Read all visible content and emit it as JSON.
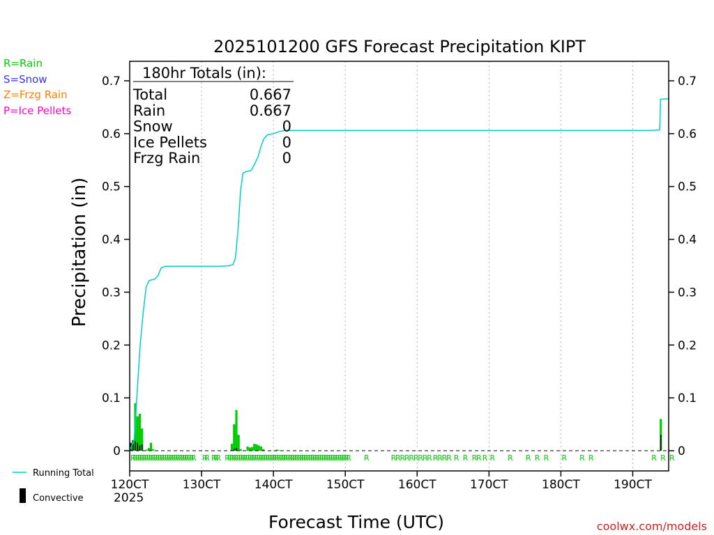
{
  "chart_data": {
    "type": "bar",
    "title": "2025101200 GFS Forecast Precipitation KIPT",
    "xlabel": "Forecast Time (UTC)",
    "ylabel": "Precipitation (in)",
    "ylim": [
      0,
      0.73
    ],
    "xlim_hours": [
      0,
      180
    ],
    "y_ticks": [
      "0",
      "0.1",
      "0.2",
      "0.3",
      "0.4",
      "0.5",
      "0.6",
      "0.7"
    ],
    "y_tick_values": [
      0,
      0.1,
      0.2,
      0.3,
      0.4,
      0.5,
      0.6,
      0.7
    ],
    "x_ticks": [
      {
        "label": "120CT",
        "hour": 0
      },
      {
        "label": "130CT",
        "hour": 24
      },
      {
        "label": "140CT",
        "hour": 48
      },
      {
        "label": "150CT",
        "hour": 72
      },
      {
        "label": "160CT",
        "hour": 96
      },
      {
        "label": "170CT",
        "hour": 120
      },
      {
        "label": "180CT",
        "hour": 144
      },
      {
        "label": "190CT",
        "hour": 168
      }
    ],
    "year_label": "2025",
    "totals": {
      "heading": "180hr Totals (in):",
      "rows": [
        {
          "label": "Total",
          "value": "0.667"
        },
        {
          "label": "Rain",
          "value": "0.667"
        },
        {
          "label": "Snow",
          "value": "0"
        },
        {
          "label": "Ice Pellets",
          "value": "0"
        },
        {
          "label": "Frzg Rain",
          "value": "0"
        }
      ]
    },
    "precip_type_legend": [
      {
        "label": "R=Rain",
        "color": "#00cc00"
      },
      {
        "label": "S=Snow",
        "color": "#3333ff"
      },
      {
        "label": "Z=Frzg Rain",
        "color": "#ff8000"
      },
      {
        "label": "P=Ice Pellets",
        "color": "#ff00cc"
      }
    ],
    "series_legend": {
      "running_total": "Running Total",
      "convective": "Convective"
    },
    "series": [
      {
        "name": "Precipitation (bar, in)",
        "color": "#00cc00",
        "points": [
          [
            0.75,
            0.015
          ],
          [
            1.5,
            0.02
          ],
          [
            2.25,
            0.09
          ],
          [
            3.0,
            0.065
          ],
          [
            3.75,
            0.07
          ],
          [
            4.5,
            0.042
          ],
          [
            5.25,
            0.0
          ],
          [
            6.0,
            0.002
          ],
          [
            6.75,
            0.005
          ],
          [
            7.5,
            0.015
          ],
          [
            8.25,
            0.003
          ],
          [
            34.5,
            0.013
          ],
          [
            35.25,
            0.05
          ],
          [
            36.0,
            0.077
          ],
          [
            36.75,
            0.03
          ],
          [
            37.5,
            0.003
          ],
          [
            39.75,
            0.008
          ],
          [
            40.5,
            0.006
          ],
          [
            41.25,
            0.007
          ],
          [
            42.0,
            0.013
          ],
          [
            42.75,
            0.012
          ],
          [
            43.5,
            0.01
          ],
          [
            44.25,
            0.008
          ],
          [
            45.0,
            0.003
          ],
          [
            49.5,
            0.002
          ],
          [
            50.25,
            0.001
          ],
          [
            177.75,
            0.06
          ]
        ]
      },
      {
        "name": "Convective (bar, in)",
        "color": "#000000",
        "points": [
          [
            0.75,
            0.015
          ],
          [
            1.5,
            0.02
          ],
          [
            2.25,
            0.018
          ],
          [
            3.0,
            0.015
          ],
          [
            3.75,
            0.01
          ],
          [
            4.5,
            0.012
          ],
          [
            35.25,
            0.004
          ],
          [
            36.0,
            0.005
          ],
          [
            177.75,
            0.03
          ]
        ]
      },
      {
        "name": "Running Total (in)",
        "color": "#00cccc",
        "points": [
          [
            0,
            0.0
          ],
          [
            1.5,
            0.02
          ],
          [
            2.5,
            0.11
          ],
          [
            3.5,
            0.2
          ],
          [
            4.5,
            0.26
          ],
          [
            5.5,
            0.31
          ],
          [
            6.5,
            0.322
          ],
          [
            8.5,
            0.325
          ],
          [
            9.5,
            0.332
          ],
          [
            10.5,
            0.346
          ],
          [
            12,
            0.349
          ],
          [
            30,
            0.349
          ],
          [
            33,
            0.35
          ],
          [
            34.5,
            0.352
          ],
          [
            35.3,
            0.365
          ],
          [
            36.2,
            0.42
          ],
          [
            37.0,
            0.49
          ],
          [
            37.8,
            0.525
          ],
          [
            38.8,
            0.528
          ],
          [
            40.5,
            0.53
          ],
          [
            41.5,
            0.54
          ],
          [
            42.8,
            0.555
          ],
          [
            43.8,
            0.575
          ],
          [
            44.8,
            0.59
          ],
          [
            46,
            0.598
          ],
          [
            48,
            0.6
          ],
          [
            50,
            0.604
          ],
          [
            52,
            0.606
          ],
          [
            174,
            0.606
          ],
          [
            177,
            0.607
          ],
          [
            177.3,
            0.665
          ],
          [
            180,
            0.666
          ]
        ]
      }
    ],
    "precip_type_row": {
      "symbol": "R",
      "color": "#00cc00",
      "hours": [
        0,
        0.75,
        1.5,
        2.25,
        3.0,
        3.75,
        4.5,
        5.25,
        6.0,
        6.75,
        7.5,
        8.25,
        9.0,
        9.75,
        10.5,
        11.25,
        12.0,
        12.75,
        13.5,
        14.25,
        15.0,
        15.75,
        16.5,
        17.25,
        18.0,
        18.75,
        19.5,
        20.25,
        24.0,
        24.75,
        27.0,
        27.75,
        28.5,
        31.5,
        32.25,
        33.0,
        33.75,
        34.5,
        35.25,
        36.0,
        36.75,
        37.5,
        38.25,
        39.0,
        39.75,
        40.5,
        41.25,
        42.0,
        42.75,
        43.5,
        44.25,
        45.0,
        45.75,
        46.5,
        47.25,
        48.0,
        48.75,
        49.5,
        50.25,
        51.0,
        51.75,
        52.5,
        53.25,
        54.0,
        54.75,
        55.5,
        56.25,
        57.0,
        57.75,
        58.5,
        59.25,
        60.0,
        60.75,
        61.5,
        62.25,
        63.0,
        63.75,
        64.5,
        65.25,
        66.0,
        66.75,
        67.5,
        68.25,
        69.0,
        69.75,
        70.5,
        71.25,
        72.0,
        78.0,
        87.0,
        88.5,
        90.0,
        91.5,
        93.0,
        94.5,
        96.0,
        97.5,
        99.0,
        101.0,
        102.5,
        104.0,
        105.5,
        108.0,
        111.0,
        114.0,
        115.5,
        117.5,
        120.0,
        126.0,
        132.0,
        135.0,
        138.0,
        144.0,
        150.0,
        153.0,
        174.0,
        177.0,
        180.0
      ]
    }
  },
  "watermark": "coolwx.com/models",
  "colors": {
    "rain": "#00cc00",
    "running_total": "#00cccc",
    "convective": "#000000",
    "grid": "#b0b0b0"
  }
}
